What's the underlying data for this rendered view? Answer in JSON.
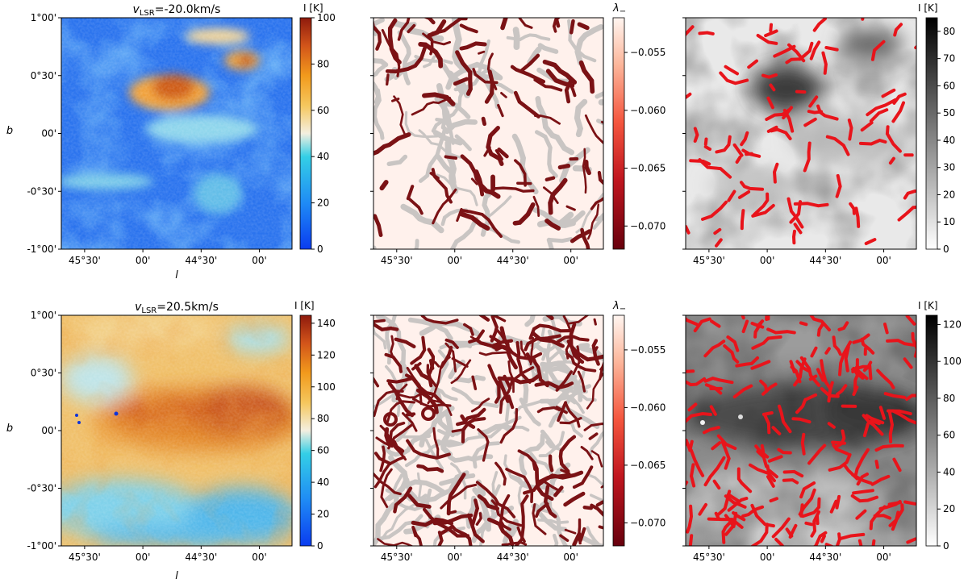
{
  "figure": {
    "rows": [
      {
        "title": "v_LSR=-20.0km/s",
        "title_main": "v",
        "title_sub": "LSR",
        "title_rest": "=-20.0km/s",
        "intensity_cbar": {
          "label": "I [K]",
          "ticks": [
            "0",
            "20",
            "40",
            "60",
            "80",
            "100"
          ],
          "min": 0,
          "max": 100,
          "cmap": "jet-like"
        },
        "lambda_cbar": {
          "label": "λ_",
          "ticks": [
            "−0.055",
            "−0.060",
            "−0.065",
            "−0.070"
          ],
          "tick_values": [
            -0.055,
            -0.06,
            -0.065,
            -0.07
          ],
          "min": -0.072,
          "max": -0.052,
          "cmap": "reds"
        },
        "gray_cbar": {
          "label": "I [K]",
          "ticks": [
            "0",
            "10",
            "20",
            "30",
            "40",
            "50",
            "60",
            "70",
            "80"
          ],
          "min": 0,
          "max": 85,
          "cmap": "grays"
        }
      },
      {
        "title": "v_LSR=20.5km/s",
        "title_main": "v",
        "title_sub": "LSR",
        "title_rest": "=20.5km/s",
        "intensity_cbar": {
          "label": "I [K]",
          "ticks": [
            "0",
            "20",
            "40",
            "60",
            "80",
            "100",
            "120",
            "140"
          ],
          "min": 0,
          "max": 145,
          "cmap": "jet-like"
        },
        "lambda_cbar": {
          "label": "λ_",
          "ticks": [
            "−0.055",
            "−0.060",
            "−0.065",
            "−0.070"
          ],
          "tick_values": [
            -0.055,
            -0.06,
            -0.065,
            -0.07
          ],
          "min": -0.072,
          "max": -0.052,
          "cmap": "reds"
        },
        "gray_cbar": {
          "label": "I [K]",
          "ticks": [
            "0",
            "20",
            "40",
            "60",
            "80",
            "100",
            "120"
          ],
          "min": 0,
          "max": 125,
          "cmap": "grays"
        }
      }
    ],
    "x_ticks": [
      "45°30'",
      "00'",
      "44°30'",
      "00'"
    ],
    "x_tick_values": [
      45.5,
      45.0,
      44.5,
      44.0
    ],
    "y_ticks": [
      "1°00'",
      "0°30'",
      "00'",
      "-0°30'",
      "-1°00'"
    ],
    "y_tick_values": [
      1.0,
      0.5,
      0.0,
      -0.5,
      -1.0
    ],
    "xlabel": "l",
    "ylabel": "b"
  },
  "chart_data": [
    {
      "type": "heatmap",
      "panel": "row1-intensity",
      "title": "v_LSR=-20.0km/s",
      "xlabel": "l",
      "ylabel": "b",
      "x_range_deg": [
        45.7,
        43.7
      ],
      "y_range_deg": [
        -1.0,
        1.0
      ],
      "colorbar": {
        "label": "I [K]",
        "range": [
          0,
          100
        ]
      }
    },
    {
      "type": "heatmap",
      "panel": "row1-lambda",
      "colorbar": {
        "label": "λ_",
        "range": [
          -0.072,
          -0.052
        ]
      }
    },
    {
      "type": "heatmap",
      "panel": "row1-gray-filaments",
      "colorbar": {
        "label": "I [K]",
        "range": [
          0,
          85
        ]
      }
    },
    {
      "type": "heatmap",
      "panel": "row2-intensity",
      "title": "v_LSR=20.5km/s",
      "xlabel": "l",
      "ylabel": "b",
      "x_range_deg": [
        45.7,
        43.7
      ],
      "y_range_deg": [
        -1.0,
        1.0
      ],
      "colorbar": {
        "label": "I [K]",
        "range": [
          0,
          145
        ]
      }
    },
    {
      "type": "heatmap",
      "panel": "row2-lambda",
      "colorbar": {
        "label": "λ_",
        "range": [
          -0.072,
          -0.052
        ]
      }
    },
    {
      "type": "heatmap",
      "panel": "row2-gray-filaments",
      "colorbar": {
        "label": "I [K]",
        "range": [
          0,
          125
        ]
      }
    }
  ]
}
